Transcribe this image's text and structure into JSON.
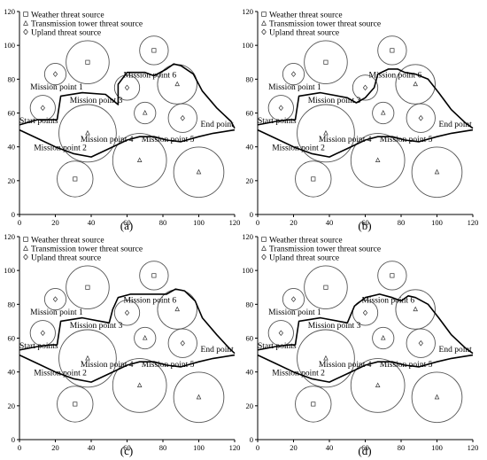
{
  "chart_data": [
    {
      "panel_label": "(a)",
      "type": "scatter",
      "xlim": [
        0,
        120
      ],
      "ylim": [
        0,
        120
      ],
      "xticks": [
        0,
        20,
        40,
        60,
        80,
        100,
        120
      ],
      "yticks": [
        0,
        20,
        40,
        60,
        80,
        100,
        120
      ],
      "legend": [
        {
          "symbol": "square",
          "label": "Weather threat source"
        },
        {
          "symbol": "triangle",
          "label": "Transmission tower threat source"
        },
        {
          "symbol": "diamond",
          "label": "Upland threat source"
        }
      ],
      "threats": [
        {
          "type": "square",
          "x": 38,
          "y": 90,
          "r": 12
        },
        {
          "type": "square",
          "x": 75,
          "y": 97,
          "r": 8
        },
        {
          "type": "diamond",
          "x": 20,
          "y": 83,
          "r": 6
        },
        {
          "type": "diamond",
          "x": 13,
          "y": 63,
          "r": 7
        },
        {
          "type": "diamond",
          "x": 60,
          "y": 75,
          "r": 7
        },
        {
          "type": "diamond",
          "x": 91,
          "y": 57,
          "r": 8
        },
        {
          "type": "triangle",
          "x": 88,
          "y": 77,
          "r": 11
        },
        {
          "type": "triangle",
          "x": 70,
          "y": 60,
          "r": 6
        },
        {
          "type": "triangle",
          "x": 38,
          "y": 48,
          "r": 16
        },
        {
          "type": "triangle",
          "x": 67,
          "y": 32,
          "r": 15
        },
        {
          "type": "triangle",
          "x": 100,
          "y": 25,
          "r": 14
        },
        {
          "type": "square",
          "x": 31,
          "y": 21,
          "r": 10
        }
      ],
      "route": [
        [
          0,
          50
        ],
        [
          10,
          45
        ],
        [
          20,
          40
        ],
        [
          30,
          36
        ],
        [
          40,
          34
        ],
        [
          50,
          39
        ],
        [
          60,
          44
        ],
        [
          67,
          46
        ],
        [
          75,
          46
        ],
        [
          82,
          44
        ],
        [
          90,
          43
        ],
        [
          100,
          46
        ],
        [
          108,
          48
        ],
        [
          120,
          50
        ],
        [
          115,
          54
        ],
        [
          108,
          63
        ],
        [
          102,
          73
        ],
        [
          97,
          83
        ],
        [
          92,
          88
        ],
        [
          87,
          89
        ],
        [
          80,
          87
        ],
        [
          75,
          85
        ],
        [
          67,
          77
        ],
        [
          65,
          73
        ],
        [
          55,
          65
        ],
        [
          48,
          71
        ],
        [
          35,
          72
        ],
        [
          23,
          70
        ],
        [
          21,
          56
        ],
        [
          18,
          56
        ],
        [
          10,
          56
        ],
        [
          0,
          53
        ]
      ],
      "route_lower": [
        [
          0,
          50
        ],
        [
          10,
          45
        ],
        [
          20,
          40
        ],
        [
          30,
          36
        ],
        [
          40,
          34
        ],
        [
          50,
          39
        ],
        [
          60,
          44
        ],
        [
          67,
          46
        ],
        [
          75,
          46
        ],
        [
          82,
          44
        ],
        [
          90,
          43
        ],
        [
          100,
          46
        ],
        [
          108,
          48
        ],
        [
          120,
          50
        ]
      ],
      "route_upper": [
        [
          0,
          53
        ],
        [
          10,
          56
        ],
        [
          18,
          56
        ],
        [
          21,
          56
        ],
        [
          23,
          70
        ],
        [
          35,
          72
        ],
        [
          48,
          71
        ],
        [
          55,
          65
        ],
        [
          55,
          77
        ],
        [
          60,
          84
        ],
        [
          70,
          84
        ],
        [
          75,
          82
        ],
        [
          82,
          86
        ],
        [
          86,
          89
        ],
        [
          90,
          88
        ],
        [
          97,
          83
        ],
        [
          102,
          73
        ],
        [
          110,
          63
        ],
        [
          118,
          55
        ],
        [
          120,
          51
        ]
      ],
      "annotations": [
        {
          "text": "Mission point 1",
          "x": 6,
          "y": 74
        },
        {
          "text": "Mission point 3",
          "x": 28,
          "y": 66
        },
        {
          "text": "Mission point 6",
          "x": 58,
          "y": 81
        },
        {
          "text": "Start points",
          "x": 0,
          "y": 54
        },
        {
          "text": "End point",
          "x": 101,
          "y": 52
        },
        {
          "text": "Mission point 4",
          "x": 34,
          "y": 43
        },
        {
          "text": "Mission point 5",
          "x": 68,
          "y": 43
        },
        {
          "text": "Mission point 2",
          "x": 8,
          "y": 38
        }
      ]
    },
    {
      "panel_label": "(b)",
      "type": "scatter",
      "xlim": [
        0,
        120
      ],
      "ylim": [
        0,
        120
      ],
      "xticks": [
        0,
        20,
        40,
        60,
        80,
        100,
        120
      ],
      "yticks": [
        0,
        20,
        40,
        60,
        80,
        100,
        120
      ],
      "legend": [
        {
          "symbol": "square",
          "label": "Weather threat source"
        },
        {
          "symbol": "triangle",
          "label": "Transmission tower threat source"
        },
        {
          "symbol": "diamond",
          "label": "Upland threat source"
        }
      ],
      "threats": [
        {
          "type": "square",
          "x": 38,
          "y": 90,
          "r": 12
        },
        {
          "type": "square",
          "x": 75,
          "y": 97,
          "r": 8
        },
        {
          "type": "diamond",
          "x": 20,
          "y": 83,
          "r": 6
        },
        {
          "type": "diamond",
          "x": 13,
          "y": 63,
          "r": 7
        },
        {
          "type": "diamond",
          "x": 60,
          "y": 75,
          "r": 7
        },
        {
          "type": "diamond",
          "x": 91,
          "y": 57,
          "r": 8
        },
        {
          "type": "triangle",
          "x": 88,
          "y": 77,
          "r": 11
        },
        {
          "type": "triangle",
          "x": 70,
          "y": 60,
          "r": 6
        },
        {
          "type": "triangle",
          "x": 38,
          "y": 48,
          "r": 16
        },
        {
          "type": "triangle",
          "x": 67,
          "y": 32,
          "r": 15
        },
        {
          "type": "triangle",
          "x": 100,
          "y": 25,
          "r": 14
        },
        {
          "type": "square",
          "x": 31,
          "y": 21,
          "r": 10
        }
      ],
      "route_lower": [
        [
          0,
          50
        ],
        [
          10,
          45
        ],
        [
          20,
          40
        ],
        [
          30,
          36
        ],
        [
          40,
          34
        ],
        [
          50,
          39
        ],
        [
          60,
          44
        ],
        [
          67,
          46
        ],
        [
          75,
          46
        ],
        [
          82,
          44
        ],
        [
          90,
          43
        ],
        [
          100,
          46
        ],
        [
          108,
          48
        ],
        [
          120,
          50
        ]
      ],
      "route_upper": [
        [
          0,
          53
        ],
        [
          10,
          55
        ],
        [
          18,
          56
        ],
        [
          21,
          56
        ],
        [
          23,
          70
        ],
        [
          35,
          72
        ],
        [
          50,
          69
        ],
        [
          55,
          66
        ],
        [
          60,
          69
        ],
        [
          65,
          75
        ],
        [
          67,
          83
        ],
        [
          73,
          86
        ],
        [
          78,
          86
        ],
        [
          82,
          84
        ],
        [
          88,
          83
        ],
        [
          95,
          80
        ],
        [
          101,
          72
        ],
        [
          108,
          62
        ],
        [
          116,
          54
        ],
        [
          120,
          51
        ]
      ],
      "annotations": [
        {
          "text": "Mission point 1",
          "x": 6,
          "y": 74
        },
        {
          "text": "Mission point 3",
          "x": 28,
          "y": 66
        },
        {
          "text": "Mission point 6",
          "x": 62,
          "y": 81
        },
        {
          "text": "Start points",
          "x": 0,
          "y": 54
        },
        {
          "text": "End point",
          "x": 101,
          "y": 52
        },
        {
          "text": "Mission point 4",
          "x": 34,
          "y": 43
        },
        {
          "text": "Mission point 5",
          "x": 68,
          "y": 43
        },
        {
          "text": "Mission point 2",
          "x": 8,
          "y": 38
        }
      ]
    },
    {
      "panel_label": "(c)",
      "type": "scatter",
      "xlim": [
        0,
        120
      ],
      "ylim": [
        0,
        120
      ],
      "xticks": [
        0,
        20,
        40,
        60,
        80,
        100,
        120
      ],
      "yticks": [
        0,
        20,
        40,
        60,
        80,
        100,
        120
      ],
      "legend": [
        {
          "symbol": "square",
          "label": "Weather threat source"
        },
        {
          "symbol": "triangle",
          "label": "Transmission tower threat source"
        },
        {
          "symbol": "diamond",
          "label": "Upland threat source"
        }
      ],
      "threats": [
        {
          "type": "square",
          "x": 38,
          "y": 90,
          "r": 12
        },
        {
          "type": "square",
          "x": 75,
          "y": 97,
          "r": 8
        },
        {
          "type": "diamond",
          "x": 20,
          "y": 83,
          "r": 6
        },
        {
          "type": "diamond",
          "x": 13,
          "y": 63,
          "r": 7
        },
        {
          "type": "diamond",
          "x": 60,
          "y": 75,
          "r": 7
        },
        {
          "type": "diamond",
          "x": 91,
          "y": 57,
          "r": 8
        },
        {
          "type": "triangle",
          "x": 88,
          "y": 77,
          "r": 11
        },
        {
          "type": "triangle",
          "x": 70,
          "y": 60,
          "r": 6
        },
        {
          "type": "triangle",
          "x": 38,
          "y": 48,
          "r": 16
        },
        {
          "type": "triangle",
          "x": 67,
          "y": 32,
          "r": 15
        },
        {
          "type": "triangle",
          "x": 100,
          "y": 25,
          "r": 14
        },
        {
          "type": "square",
          "x": 31,
          "y": 21,
          "r": 10
        }
      ],
      "route_lower": [
        [
          0,
          50
        ],
        [
          10,
          45
        ],
        [
          20,
          40
        ],
        [
          30,
          36
        ],
        [
          40,
          34
        ],
        [
          50,
          39
        ],
        [
          60,
          44
        ],
        [
          67,
          46
        ],
        [
          75,
          46
        ],
        [
          82,
          44
        ],
        [
          90,
          43
        ],
        [
          100,
          46
        ],
        [
          108,
          48
        ],
        [
          120,
          50
        ]
      ],
      "route_upper": [
        [
          0,
          53
        ],
        [
          10,
          55
        ],
        [
          18,
          56
        ],
        [
          21,
          56
        ],
        [
          23,
          70
        ],
        [
          35,
          72
        ],
        [
          50,
          69
        ],
        [
          52,
          77
        ],
        [
          55,
          84
        ],
        [
          62,
          86
        ],
        [
          75,
          86
        ],
        [
          82,
          86
        ],
        [
          87,
          89
        ],
        [
          92,
          88
        ],
        [
          98,
          82
        ],
        [
          102,
          72
        ],
        [
          110,
          62
        ],
        [
          117,
          54
        ],
        [
          120,
          51
        ]
      ],
      "annotations": [
        {
          "text": "Mission point 1",
          "x": 6,
          "y": 74
        },
        {
          "text": "Mission point 3",
          "x": 28,
          "y": 66
        },
        {
          "text": "Mission point 6",
          "x": 58,
          "y": 81
        },
        {
          "text": "Start points",
          "x": 0,
          "y": 54
        },
        {
          "text": "End point",
          "x": 101,
          "y": 52
        },
        {
          "text": "Mission point 4",
          "x": 34,
          "y": 43
        },
        {
          "text": "Mission point 5",
          "x": 68,
          "y": 43
        },
        {
          "text": "Mission point 2",
          "x": 8,
          "y": 38
        }
      ]
    },
    {
      "panel_label": "(d)",
      "type": "scatter",
      "xlim": [
        0,
        120
      ],
      "ylim": [
        0,
        120
      ],
      "xticks": [
        0,
        20,
        40,
        60,
        80,
        100,
        120
      ],
      "yticks": [
        0,
        20,
        40,
        60,
        80,
        100,
        120
      ],
      "legend": [
        {
          "symbol": "square",
          "label": "Weather threat source"
        },
        {
          "symbol": "triangle",
          "label": "Transmission tower threat source"
        },
        {
          "symbol": "diamond",
          "label": "Upland threat source"
        }
      ],
      "threats": [
        {
          "type": "square",
          "x": 38,
          "y": 90,
          "r": 12
        },
        {
          "type": "square",
          "x": 75,
          "y": 97,
          "r": 8
        },
        {
          "type": "diamond",
          "x": 20,
          "y": 83,
          "r": 6
        },
        {
          "type": "diamond",
          "x": 13,
          "y": 63,
          "r": 7
        },
        {
          "type": "diamond",
          "x": 60,
          "y": 75,
          "r": 7
        },
        {
          "type": "diamond",
          "x": 91,
          "y": 57,
          "r": 8
        },
        {
          "type": "triangle",
          "x": 88,
          "y": 77,
          "r": 11
        },
        {
          "type": "triangle",
          "x": 70,
          "y": 60,
          "r": 6
        },
        {
          "type": "triangle",
          "x": 38,
          "y": 48,
          "r": 16
        },
        {
          "type": "triangle",
          "x": 67,
          "y": 32,
          "r": 15
        },
        {
          "type": "triangle",
          "x": 100,
          "y": 25,
          "r": 14
        },
        {
          "type": "square",
          "x": 31,
          "y": 21,
          "r": 10
        }
      ],
      "route_lower": [
        [
          0,
          50
        ],
        [
          10,
          45
        ],
        [
          20,
          40
        ],
        [
          30,
          36
        ],
        [
          40,
          34
        ],
        [
          50,
          39
        ],
        [
          60,
          44
        ],
        [
          67,
          46
        ],
        [
          75,
          46
        ],
        [
          82,
          44
        ],
        [
          90,
          43
        ],
        [
          100,
          46
        ],
        [
          108,
          48
        ],
        [
          120,
          50
        ]
      ],
      "route_upper": [
        [
          0,
          53
        ],
        [
          10,
          55
        ],
        [
          18,
          56
        ],
        [
          21,
          56
        ],
        [
          23,
          70
        ],
        [
          35,
          72
        ],
        [
          50,
          69
        ],
        [
          54,
          79
        ],
        [
          60,
          84
        ],
        [
          68,
          86
        ],
        [
          75,
          84
        ],
        [
          80,
          82
        ],
        [
          84,
          85
        ],
        [
          88,
          84
        ],
        [
          95,
          80
        ],
        [
          101,
          72
        ],
        [
          108,
          62
        ],
        [
          116,
          54
        ],
        [
          120,
          51
        ]
      ],
      "annotations": [
        {
          "text": "Mission point 1",
          "x": 6,
          "y": 74
        },
        {
          "text": "Mission point 3",
          "x": 28,
          "y": 66
        },
        {
          "text": "Mission point 6",
          "x": 58,
          "y": 81
        },
        {
          "text": "Start points",
          "x": 0,
          "y": 54
        },
        {
          "text": "End point",
          "x": 101,
          "y": 52
        },
        {
          "text": "Mission point 4",
          "x": 34,
          "y": 43
        },
        {
          "text": "Mission point 5",
          "x": 68,
          "y": 43
        },
        {
          "text": "Mission point 2",
          "x": 8,
          "y": 38
        }
      ]
    }
  ]
}
